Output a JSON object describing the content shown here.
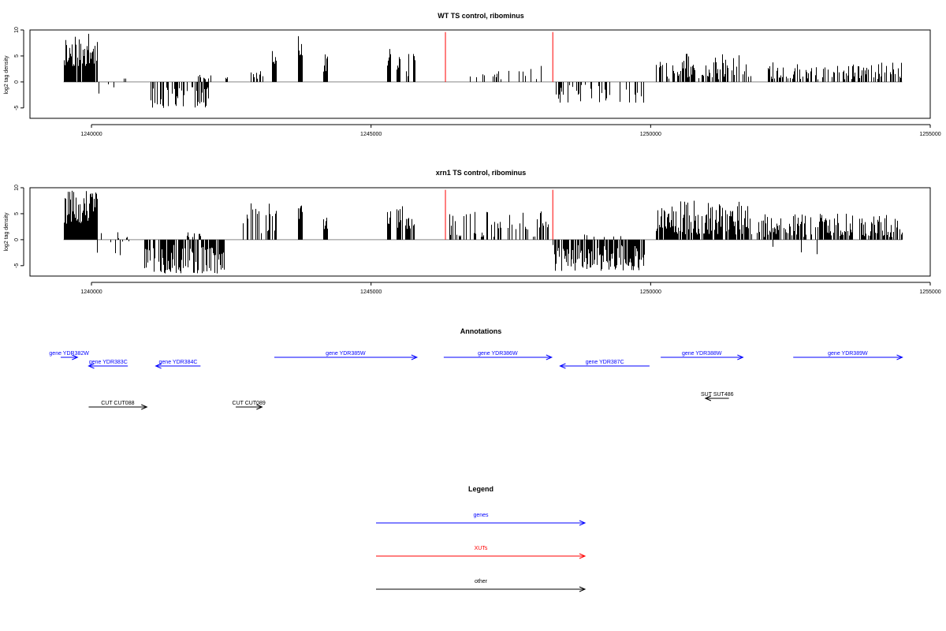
{
  "chart_data": [
    {
      "type": "bar",
      "title": "WT TS control, ribominus",
      "xlabel": "",
      "ylabel": "log2 tag density",
      "xlim": [
        1238900,
        1255000
      ],
      "ylim": [
        -7,
        10
      ],
      "xticks": [
        1240000,
        1245000,
        1250000,
        1255000
      ],
      "xtick_labels": [
        "1240000",
        "1245000",
        "1250000",
        "1255000"
      ],
      "yticks": [
        -5,
        0,
        5,
        10
      ],
      "ytick_labels": [
        "-5",
        "0",
        "5",
        "10"
      ],
      "bar_color": "#000000",
      "highlight_color": "#ff0000",
      "highlights": [
        {
          "x": 1246330,
          "y": 9.6
        },
        {
          "x": 1248250,
          "y": 9.6
        }
      ],
      "regions": [
        {
          "start": 1239500,
          "end": 1240100,
          "min": 3,
          "max": 9.3,
          "density": 0.9,
          "seed": 11
        },
        {
          "start": 1240100,
          "end": 1240700,
          "min": -2.5,
          "max": 2,
          "density": 0.12,
          "seed": 12
        },
        {
          "start": 1241050,
          "end": 1242100,
          "min": -5,
          "max": -1,
          "density": 0.55,
          "seed": 13
        },
        {
          "start": 1241900,
          "end": 1242150,
          "min": 0.5,
          "max": 1.8,
          "density": 0.3,
          "seed": 14
        },
        {
          "start": 1242400,
          "end": 1242450,
          "min": 0.5,
          "max": 1,
          "density": 0.5,
          "seed": 15
        },
        {
          "start": 1242850,
          "end": 1243100,
          "min": 0.5,
          "max": 2.5,
          "density": 0.25,
          "seed": 16
        },
        {
          "start": 1243230,
          "end": 1243300,
          "min": 3,
          "max": 6.8,
          "density": 1,
          "seed": 17
        },
        {
          "start": 1243700,
          "end": 1243770,
          "min": 5,
          "max": 9.3,
          "density": 1,
          "seed": 18
        },
        {
          "start": 1244150,
          "end": 1244220,
          "min": 2,
          "max": 6.2,
          "density": 1,
          "seed": 19
        },
        {
          "start": 1245280,
          "end": 1245350,
          "min": 3,
          "max": 6.5,
          "density": 1,
          "seed": 20
        },
        {
          "start": 1245450,
          "end": 1245520,
          "min": 2,
          "max": 5.3,
          "density": 1,
          "seed": 21
        },
        {
          "start": 1245620,
          "end": 1245800,
          "min": 1,
          "max": 6.6,
          "density": 0.6,
          "seed": 22
        },
        {
          "start": 1246500,
          "end": 1247800,
          "min": 0.5,
          "max": 2.2,
          "density": 0.08,
          "seed": 23
        },
        {
          "start": 1247680,
          "end": 1248150,
          "min": 0.5,
          "max": 3.5,
          "density": 0.15,
          "seed": 24
        },
        {
          "start": 1248300,
          "end": 1249900,
          "min": -4,
          "max": -0.5,
          "density": 0.35,
          "seed": 25
        },
        {
          "start": 1250100,
          "end": 1251800,
          "min": 0.5,
          "max": 5.5,
          "density": 0.5,
          "seed": 26
        },
        {
          "start": 1252100,
          "end": 1254500,
          "min": 0.5,
          "max": 3.8,
          "density": 0.45,
          "seed": 27
        }
      ]
    },
    {
      "type": "bar",
      "title": "xrn1 TS control, ribominus",
      "xlabel": "",
      "ylabel": "log2 tag density",
      "xlim": [
        1238900,
        1255000
      ],
      "ylim": [
        -7,
        10
      ],
      "xticks": [
        1240000,
        1245000,
        1250000,
        1255000
      ],
      "xtick_labels": [
        "1240000",
        "1245000",
        "1250000",
        "1255000"
      ],
      "yticks": [
        -5,
        0,
        5,
        10
      ],
      "ytick_labels": [
        "-5",
        "0",
        "5",
        "10"
      ],
      "bar_color": "#000000",
      "highlight_color": "#ff0000",
      "highlights": [
        {
          "x": 1246330,
          "y": 9.6
        },
        {
          "x": 1248250,
          "y": 9.6
        }
      ],
      "regions": [
        {
          "start": 1239500,
          "end": 1240100,
          "min": 3,
          "max": 9.5,
          "density": 0.95,
          "seed": 31
        },
        {
          "start": 1240100,
          "end": 1240750,
          "min": -3,
          "max": 1.5,
          "density": 0.3,
          "seed": 32
        },
        {
          "start": 1240950,
          "end": 1242400,
          "min": -6.5,
          "max": -1,
          "density": 0.7,
          "seed": 33
        },
        {
          "start": 1241700,
          "end": 1242000,
          "min": 0.5,
          "max": 1.5,
          "density": 0.3,
          "seed": 34
        },
        {
          "start": 1242700,
          "end": 1243300,
          "min": 1,
          "max": 7,
          "density": 0.5,
          "seed": 35
        },
        {
          "start": 1243700,
          "end": 1243770,
          "min": 4,
          "max": 8.5,
          "density": 1,
          "seed": 36
        },
        {
          "start": 1244150,
          "end": 1244220,
          "min": 2,
          "max": 5.5,
          "density": 1,
          "seed": 37
        },
        {
          "start": 1245280,
          "end": 1245350,
          "min": 3,
          "max": 6.5,
          "density": 1,
          "seed": 38
        },
        {
          "start": 1245450,
          "end": 1245800,
          "min": 2,
          "max": 7,
          "density": 0.6,
          "seed": 39
        },
        {
          "start": 1246400,
          "end": 1248200,
          "min": 0.5,
          "max": 5.5,
          "density": 0.4,
          "seed": 40
        },
        {
          "start": 1248250,
          "end": 1249900,
          "min": -6,
          "max": -1,
          "density": 0.8,
          "seed": 41
        },
        {
          "start": 1248800,
          "end": 1249600,
          "min": 0.5,
          "max": 1.5,
          "density": 0.1,
          "seed": 42
        },
        {
          "start": 1250100,
          "end": 1251800,
          "min": 1,
          "max": 7.5,
          "density": 0.85,
          "seed": 43
        },
        {
          "start": 1251900,
          "end": 1254500,
          "min": 0.5,
          "max": 5,
          "density": 0.65,
          "seed": 44
        },
        {
          "start": 1251750,
          "end": 1253000,
          "min": -3,
          "max": -0.5,
          "density": 0.04,
          "seed": 45
        }
      ]
    }
  ],
  "annotations": {
    "title": "Annotations",
    "xlim": [
      1238900,
      1255000
    ],
    "features": [
      {
        "label": "gene YDR382W",
        "start": 1239450,
        "end": 1239750,
        "strand": "+",
        "row": 0,
        "color": "#0000ff"
      },
      {
        "label": "gene YDR383C",
        "start": 1239950,
        "end": 1240650,
        "strand": "-",
        "row": 1,
        "color": "#0000ff"
      },
      {
        "label": "gene YDR384C",
        "start": 1241150,
        "end": 1241950,
        "strand": "-",
        "row": 1,
        "color": "#0000ff"
      },
      {
        "label": "gene YDR385W",
        "start": 1243270,
        "end": 1245820,
        "strand": "+",
        "row": 0,
        "color": "#0000ff"
      },
      {
        "label": "gene YDR386W",
        "start": 1246300,
        "end": 1248230,
        "strand": "+",
        "row": 0,
        "color": "#0000ff"
      },
      {
        "label": "gene YDR387C",
        "start": 1248380,
        "end": 1249980,
        "strand": "-",
        "row": 1,
        "color": "#0000ff"
      },
      {
        "label": "gene YDR388W",
        "start": 1250180,
        "end": 1251650,
        "strand": "+",
        "row": 0,
        "color": "#0000ff"
      },
      {
        "label": "gene YDR389W",
        "start": 1252550,
        "end": 1254500,
        "strand": "+",
        "row": 0,
        "color": "#0000ff"
      },
      {
        "label": "SUT SUT486",
        "start": 1250980,
        "end": 1251400,
        "strand": "-",
        "row": 2,
        "color": "#000000"
      },
      {
        "label": "CUT CUT088",
        "start": 1239950,
        "end": 1240990,
        "strand": "+",
        "row": 3,
        "color": "#000000"
      },
      {
        "label": "CUT CUT089",
        "start": 1242580,
        "end": 1243050,
        "strand": "+",
        "row": 3,
        "color": "#000000"
      }
    ]
  },
  "legend": {
    "title": "Legend",
    "items": [
      {
        "label": "genes",
        "color": "#0000ff"
      },
      {
        "label": "XUTs",
        "color": "#ff0000"
      },
      {
        "label": "other",
        "color": "#000000"
      }
    ]
  }
}
